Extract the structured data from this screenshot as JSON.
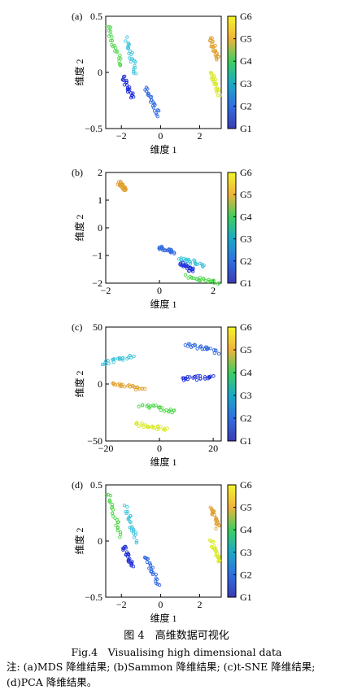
{
  "colorbar": {
    "labels": [
      "G1",
      "G2",
      "G3",
      "G4",
      "G5",
      "G6"
    ],
    "gradient": [
      "#3b3bb5",
      "#2f6fe0",
      "#1aa9c7",
      "#3fcf5f",
      "#f0b23a",
      "#f5f52a"
    ]
  },
  "group_colors": {
    "G1": "#1f2fd8",
    "G2": "#2f68e0",
    "G3": "#3cc4dc",
    "G4": "#4ed84a",
    "G5": "#e0a030",
    "G6": "#d8e828"
  },
  "caption": {
    "figure_zh": "图 4　高维数据可视化",
    "figure_en": "Fig.4　Visualising high dimensional data",
    "note": "注: (a)MDS 降维结果; (b)Sammon 降维结果; (c)t-SNE 降维结果; (d)PCA 降维结果。"
  },
  "chart_data": [
    {
      "type": "scatter",
      "panel_label": "(a)",
      "xlabel": "维度 1",
      "ylabel": "维度 2",
      "xlim": [
        -2.8,
        3.1
      ],
      "ylim": [
        -0.5,
        0.5
      ],
      "xticks": [
        -2,
        0,
        2
      ],
      "yticks": [
        -0.5,
        0,
        0.5
      ],
      "series": [
        {
          "name": "G4",
          "x": [
            -2.7,
            -2.0
          ],
          "y": [
            0.42,
            0.05
          ]
        },
        {
          "name": "G3",
          "x": [
            -1.75,
            -1.25
          ],
          "y": [
            0.3,
            0.0
          ]
        },
        {
          "name": "G1",
          "x": [
            -1.9,
            -1.4
          ],
          "y": [
            -0.05,
            -0.22
          ]
        },
        {
          "name": "G2",
          "x": [
            -0.8,
            -0.1
          ],
          "y": [
            -0.13,
            -0.38
          ]
        },
        {
          "name": "G5",
          "x": [
            2.55,
            2.95
          ],
          "y": [
            0.3,
            0.12
          ]
        },
        {
          "name": "G6",
          "x": [
            2.6,
            3.0
          ],
          "y": [
            0.0,
            -0.2
          ]
        }
      ]
    },
    {
      "type": "scatter",
      "panel_label": "(b)",
      "xlabel": "维度 1",
      "ylabel": "维度 2",
      "xlim": [
        -2,
        2.3
      ],
      "ylim": [
        -2,
        2
      ],
      "xticks": [
        -2,
        0,
        2
      ],
      "yticks": [
        -2,
        -1,
        0,
        1,
        2
      ],
      "series": [
        {
          "name": "G5",
          "x": [
            -1.5,
            -1.25
          ],
          "y": [
            1.62,
            1.38
          ]
        },
        {
          "name": "G2",
          "x": [
            0.0,
            0.55
          ],
          "y": [
            -0.72,
            -0.88
          ]
        },
        {
          "name": "G3",
          "x": [
            0.75,
            1.65
          ],
          "y": [
            -1.1,
            -1.35
          ]
        },
        {
          "name": "G1",
          "x": [
            0.8,
            1.25
          ],
          "y": [
            -1.3,
            -1.55
          ]
        },
        {
          "name": "G4",
          "x": [
            1.0,
            2.2
          ],
          "y": [
            -1.75,
            -2.0
          ]
        }
      ]
    },
    {
      "type": "scatter",
      "panel_label": "(c)",
      "xlabel": "维度 1",
      "ylabel": "维度 2",
      "xlim": [
        -20,
        23
      ],
      "ylim": [
        -50,
        50
      ],
      "xticks": [
        -20,
        0,
        20
      ],
      "yticks": [
        -50,
        0,
        50
      ],
      "series": [
        {
          "name": "G3",
          "x": [
            -21,
            -10
          ],
          "y": [
            18,
            25
          ]
        },
        {
          "name": "G2",
          "x": [
            10,
            22
          ],
          "y": [
            35,
            28
          ]
        },
        {
          "name": "G5",
          "x": [
            -18,
            -6
          ],
          "y": [
            0,
            -5
          ]
        },
        {
          "name": "G1",
          "x": [
            8,
            20
          ],
          "y": [
            4,
            7
          ]
        },
        {
          "name": "G4",
          "x": [
            -7,
            6
          ],
          "y": [
            -18,
            -24
          ]
        },
        {
          "name": "G6",
          "x": [
            -9,
            3
          ],
          "y": [
            -35,
            -40
          ]
        }
      ]
    },
    {
      "type": "scatter",
      "panel_label": "(d)",
      "xlabel": "维度 1",
      "ylabel": "维度 2",
      "xlim": [
        -2.8,
        3.1
      ],
      "ylim": [
        -0.5,
        0.5
      ],
      "xticks": [
        -2,
        0,
        2
      ],
      "yticks": [
        -0.5,
        0,
        0.5
      ],
      "series": [
        {
          "name": "G4",
          "x": [
            -2.7,
            -2.0
          ],
          "y": [
            0.42,
            0.05
          ]
        },
        {
          "name": "G3",
          "x": [
            -1.75,
            -1.25
          ],
          "y": [
            0.3,
            0.0
          ]
        },
        {
          "name": "G1",
          "x": [
            -1.9,
            -1.4
          ],
          "y": [
            -0.05,
            -0.22
          ]
        },
        {
          "name": "G2",
          "x": [
            -0.8,
            -0.1
          ],
          "y": [
            -0.13,
            -0.38
          ]
        },
        {
          "name": "G5",
          "x": [
            2.55,
            2.95
          ],
          "y": [
            0.3,
            0.12
          ]
        },
        {
          "name": "G6",
          "x": [
            2.6,
            3.0
          ],
          "y": [
            0.0,
            -0.2
          ]
        }
      ]
    }
  ]
}
